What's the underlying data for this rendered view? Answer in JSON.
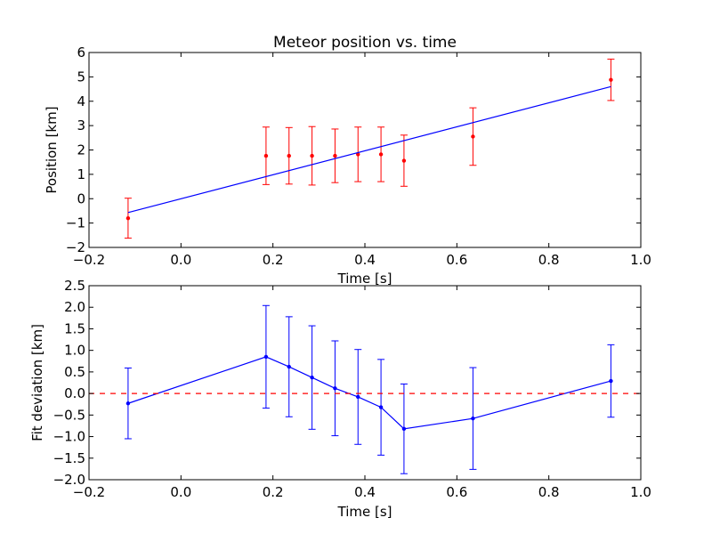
{
  "chart_data": [
    {
      "type": "scatter",
      "title": "Meteor position vs. time",
      "xlabel": "Time [s]",
      "ylabel": "Position [km]",
      "xlim": [
        -0.2,
        1.0
      ],
      "ylim": [
        -2,
        6
      ],
      "xticks": [
        -0.2,
        0.0,
        0.2,
        0.4,
        0.6,
        0.8,
        1.0
      ],
      "xtick_labels": [
        "−0.2",
        "0.0",
        "0.2",
        "0.4",
        "0.6",
        "0.8",
        "1.0"
      ],
      "yticks": [
        -2,
        -1,
        0,
        1,
        2,
        3,
        4,
        5,
        6
      ],
      "ytick_labels": [
        "−2",
        "−1",
        "0",
        "1",
        "2",
        "3",
        "4",
        "5",
        "6"
      ],
      "grid": false,
      "series": [
        {
          "kind": "errorbar",
          "color": "#ff0000",
          "x": [
            -0.115,
            0.185,
            0.235,
            0.285,
            0.335,
            0.385,
            0.435,
            0.485,
            0.635,
            0.935
          ],
          "y": [
            -0.8,
            1.76,
            1.76,
            1.76,
            1.76,
            1.82,
            1.82,
            1.56,
            2.55,
            4.88
          ],
          "yerr": [
            0.82,
            1.18,
            1.16,
            1.2,
            1.1,
            1.12,
            1.12,
            1.05,
            1.18,
            0.85
          ]
        },
        {
          "kind": "line",
          "color": "#0000ff",
          "x": [
            -0.115,
            0.935
          ],
          "y": [
            -0.57,
            4.6
          ]
        }
      ]
    },
    {
      "type": "line",
      "xlabel": "Time [s]",
      "ylabel": "Fit deviation [km]",
      "xlim": [
        -0.2,
        1.0
      ],
      "ylim": [
        -2.0,
        2.5
      ],
      "xticks": [
        -0.2,
        0.0,
        0.2,
        0.4,
        0.6,
        0.8,
        1.0
      ],
      "xtick_labels": [
        "−0.2",
        "0.0",
        "0.2",
        "0.4",
        "0.6",
        "0.8",
        "1.0"
      ],
      "yticks": [
        -2.0,
        -1.5,
        -1.0,
        -0.5,
        0.0,
        0.5,
        1.0,
        1.5,
        2.0,
        2.5
      ],
      "ytick_labels": [
        "−2.0",
        "−1.5",
        "−1.0",
        "−0.5",
        "0.0",
        "0.5",
        "1.0",
        "1.5",
        "2.0",
        "2.5"
      ],
      "grid": false,
      "series": [
        {
          "kind": "errorbar-line",
          "color": "#0000ff",
          "x": [
            -0.115,
            0.185,
            0.235,
            0.285,
            0.335,
            0.385,
            0.435,
            0.485,
            0.635,
            0.935
          ],
          "y": [
            -0.23,
            0.85,
            0.62,
            0.37,
            0.12,
            -0.08,
            -0.32,
            -0.82,
            -0.58,
            0.29
          ],
          "yerr": [
            0.82,
            1.19,
            1.16,
            1.2,
            1.1,
            1.1,
            1.11,
            1.04,
            1.18,
            0.84
          ]
        },
        {
          "kind": "hline-dashed",
          "color": "#ff0000",
          "y": 0.0
        }
      ]
    }
  ]
}
